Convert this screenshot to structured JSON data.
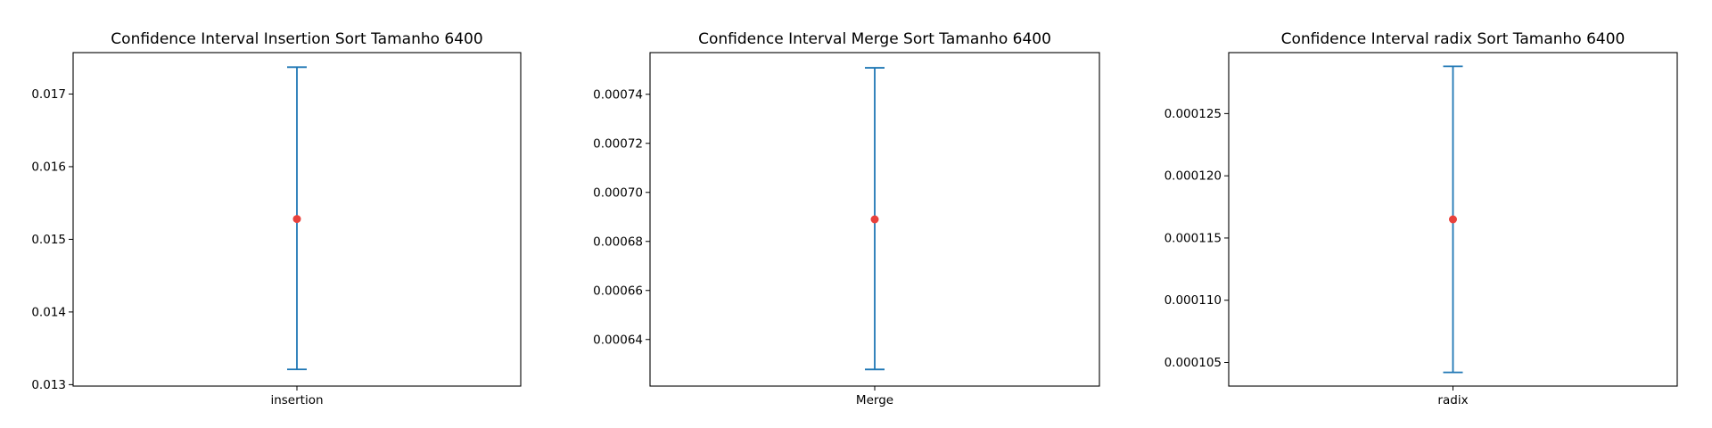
{
  "chart_data": [
    {
      "type": "errorbar",
      "title": "Confidence Interval Insertion Sort Tamanho 6400",
      "xlabel": "",
      "ylabel": "",
      "categories": [
        "insertion"
      ],
      "points": [
        {
          "category": "insertion",
          "mean": 0.01528,
          "lower": 0.01321,
          "upper": 0.01737
        }
      ],
      "ylim": [
        0.01298,
        0.01757
      ],
      "yticks": [
        0.013,
        0.014,
        0.015,
        0.016,
        0.017
      ],
      "ytick_labels": [
        "0.013",
        "0.014",
        "0.015",
        "0.016",
        "0.017"
      ],
      "grid": false,
      "colors": {
        "errorbar": "#1f77b4",
        "mean": "#e8413c"
      }
    },
    {
      "type": "errorbar",
      "title": "Confidence Interval Merge Sort Tamanho 6400",
      "xlabel": "",
      "ylabel": "",
      "categories": [
        "Merge"
      ],
      "points": [
        {
          "category": "Merge",
          "mean": 0.000689,
          "lower": 0.0006278,
          "upper": 0.0007508
        }
      ],
      "ylim": [
        0.000621,
        0.000757
      ],
      "yticks": [
        0.00064,
        0.00066,
        0.00068,
        0.0007,
        0.00072,
        0.00074
      ],
      "ytick_labels": [
        "0.00064",
        "0.00066",
        "0.00068",
        "0.00070",
        "0.00072",
        "0.00074"
      ],
      "grid": false,
      "colors": {
        "errorbar": "#1f77b4",
        "mean": "#e8413c"
      }
    },
    {
      "type": "errorbar",
      "title": "Confidence Interval radix Sort Tamanho 6400",
      "xlabel": "",
      "ylabel": "",
      "categories": [
        "radix"
      ],
      "points": [
        {
          "category": "radix",
          "mean": 0.0001165,
          "lower": 0.0001042,
          "upper": 0.0001288
        }
      ],
      "ylim": [
        0.0001031,
        0.0001299
      ],
      "yticks": [
        0.000105,
        0.00011,
        0.000115,
        0.00012,
        0.000125
      ],
      "ytick_labels": [
        "0.000105",
        "0.000110",
        "0.000115",
        "0.000120",
        "0.000125"
      ],
      "grid": false,
      "colors": {
        "errorbar": "#1f77b4",
        "mean": "#e8413c"
      }
    }
  ]
}
